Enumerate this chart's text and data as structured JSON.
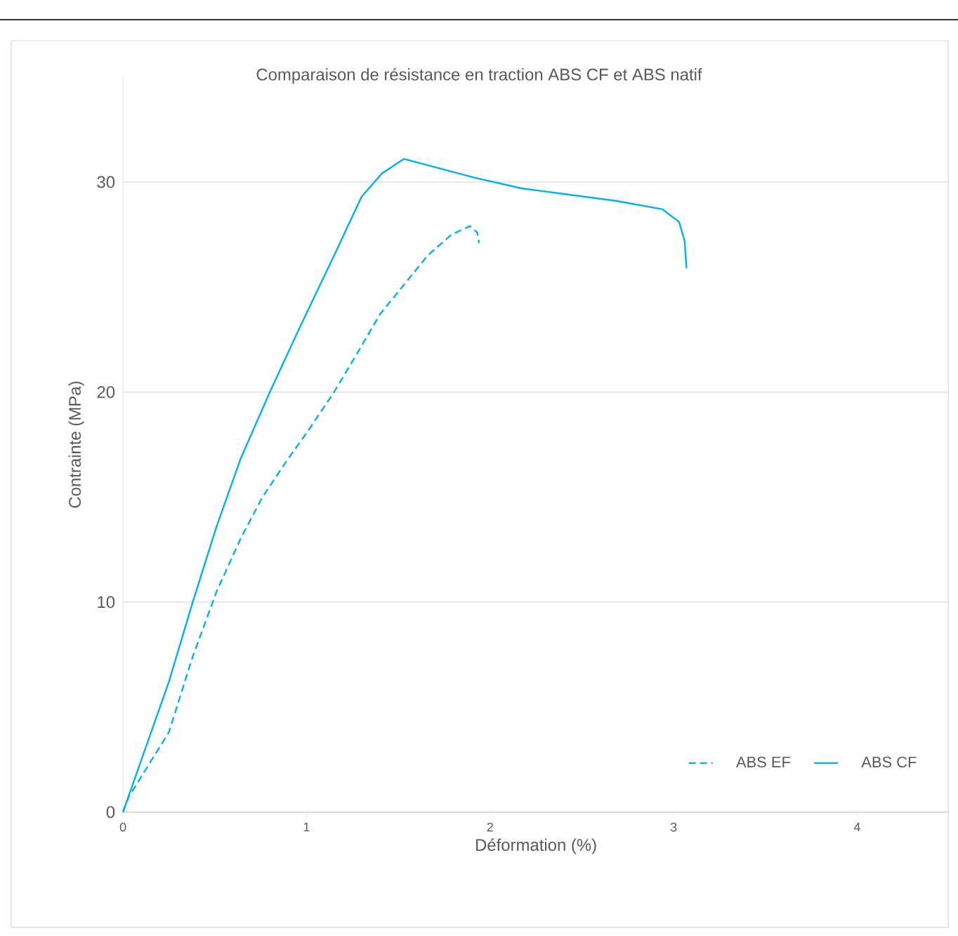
{
  "chart_data": {
    "type": "line",
    "title": "Comparaison de résistance en traction ABS CF et ABS natif",
    "xlabel": "Déformation (%)",
    "ylabel": "Contrainte (MPa)",
    "xlim": [
      0,
      4.5
    ],
    "xticks": [
      0,
      1,
      2,
      3,
      4
    ],
    "ylim": [
      0,
      35
    ],
    "yticks": [
      0,
      10,
      20,
      30
    ],
    "grid": "y",
    "legend": "bottom right",
    "marker": "none",
    "series": [
      {
        "name": "ABS EF",
        "color": "#00b0f0",
        "line_style": "dashed",
        "x": [
          0,
          0.03,
          0.25,
          0.38,
          0.51,
          0.64,
          0.76,
          0.89,
          1.02,
          1.15,
          1.28,
          1.4,
          1.53,
          1.66,
          1.79,
          1.89,
          1.93,
          1.94
        ],
        "values": [
          0,
          0.7,
          3.8,
          7.4,
          10.5,
          13.0,
          15.0,
          16.7,
          18.3,
          20.0,
          21.9,
          23.7,
          25.1,
          26.5,
          27.5,
          27.9,
          27.6,
          27.1
        ]
      },
      {
        "name": "ABS CF",
        "color": "#00b0f0",
        "line_style": "solid",
        "x": [
          0,
          0.25,
          0.38,
          0.51,
          0.64,
          0.8,
          0.97,
          1.15,
          1.3,
          1.41,
          1.53,
          1.66,
          1.92,
          2.17,
          2.43,
          2.69,
          2.94,
          3.03,
          3.06,
          3.07
        ],
        "values": [
          0,
          6.2,
          10.0,
          13.6,
          16.8,
          20.0,
          23.2,
          26.5,
          29.3,
          30.4,
          31.1,
          30.8,
          30.2,
          29.7,
          29.4,
          29.1,
          28.7,
          28.1,
          27.2,
          25.9
        ]
      }
    ]
  }
}
